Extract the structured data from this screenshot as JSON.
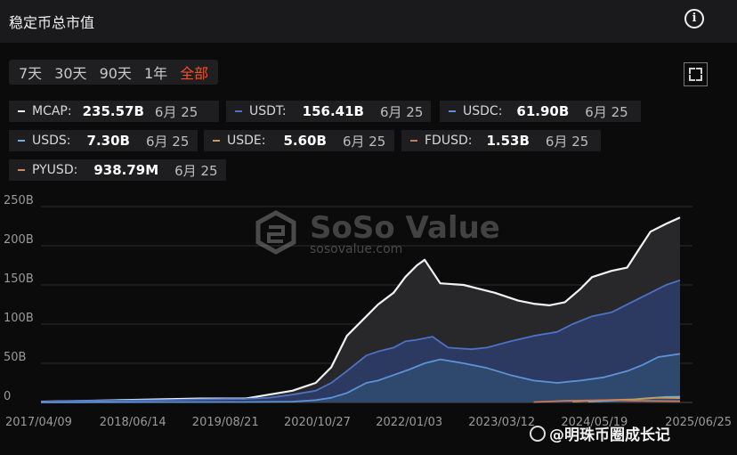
{
  "header": {
    "title": "稳定币总市值",
    "info_icon": "info-icon"
  },
  "tabs": [
    {
      "label": "7天",
      "active": false
    },
    {
      "label": "30天",
      "active": false
    },
    {
      "label": "90天",
      "active": false
    },
    {
      "label": "1年",
      "active": false
    },
    {
      "label": "全部",
      "active": true
    }
  ],
  "legend": [
    {
      "name": "MCAP:",
      "value": "235.57B",
      "date": "6月 25",
      "color": "#ffffff"
    },
    {
      "name": "USDT:",
      "value": "156.41B",
      "date": "6月 25",
      "color": "#4d72c4"
    },
    {
      "name": "USDC:",
      "value": "61.90B",
      "date": "6月 25",
      "color": "#5d93d6"
    },
    {
      "name": "USDS:",
      "value": "7.30B",
      "date": "6月 25",
      "color": "#6fb0e0"
    },
    {
      "name": "USDE:",
      "value": "5.60B",
      "date": "6月 25",
      "color": "#c59a5a"
    },
    {
      "name": "FDUSD:",
      "value": "1.53B",
      "date": "6月 25",
      "color": "#c8785a"
    },
    {
      "name": "PYUSD:",
      "value": "938.79M",
      "date": "6月 25",
      "color": "#d08a6a"
    }
  ],
  "watermark": {
    "brand": "SoSo Value",
    "url": "sosovalue.com"
  },
  "overlay_watermark": "@明珠币圈成长记",
  "chart_data": {
    "type": "area",
    "ylim": [
      0,
      250
    ],
    "yticks": [
      "0",
      "50B",
      "100B",
      "150B",
      "200B",
      "250B"
    ],
    "ytick_values": [
      0,
      50,
      100,
      150,
      200,
      250
    ],
    "xticks": [
      "2017/04/09",
      "2018/06/14",
      "2019/08/21",
      "2020/10/27",
      "2022/01/03",
      "2023/03/12",
      "2024/05/19",
      "2025/06/25"
    ],
    "xtick_values": [
      2017.27,
      2018.45,
      2019.64,
      2020.82,
      2022.0,
      2023.19,
      2024.38,
      2025.48
    ],
    "series": [
      {
        "name": "MCAP",
        "color": "#f2f2f2",
        "fill": "#2a2a2c",
        "x": [
          2017.27,
          2017.8,
          2018.3,
          2018.8,
          2019.3,
          2019.9,
          2020.2,
          2020.5,
          2020.8,
          2021.0,
          2021.2,
          2021.45,
          2021.6,
          2021.8,
          2021.95,
          2022.1,
          2022.2,
          2022.4,
          2022.7,
          2022.9,
          2023.1,
          2023.4,
          2023.6,
          2023.8,
          2024.0,
          2024.2,
          2024.35,
          2024.6,
          2024.8,
          2024.95,
          2025.1,
          2025.3,
          2025.48
        ],
        "y": [
          1,
          2,
          3,
          4,
          5,
          5,
          10,
          15,
          25,
          45,
          85,
          110,
          125,
          140,
          160,
          175,
          182,
          152,
          150,
          145,
          140,
          130,
          126,
          124,
          128,
          145,
          160,
          168,
          172,
          195,
          218,
          228,
          236
        ]
      },
      {
        "name": "USDT",
        "color": "#4d72c4",
        "fill": "#2c3a63",
        "x": [
          2017.27,
          2017.8,
          2018.3,
          2018.8,
          2019.3,
          2019.9,
          2020.2,
          2020.5,
          2020.8,
          2021.0,
          2021.2,
          2021.45,
          2021.6,
          2021.8,
          2021.95,
          2022.1,
          2022.3,
          2022.5,
          2022.8,
          2023.0,
          2023.3,
          2023.6,
          2023.9,
          2024.1,
          2024.35,
          2024.6,
          2024.9,
          2025.1,
          2025.3,
          2025.48
        ],
        "y": [
          1,
          2,
          2.5,
          3,
          4,
          4.5,
          6,
          10,
          15,
          25,
          40,
          60,
          65,
          70,
          78,
          80,
          84,
          70,
          68,
          70,
          78,
          85,
          90,
          100,
          110,
          115,
          130,
          140,
          150,
          156
        ]
      },
      {
        "name": "USDC",
        "color": "#5d93d6",
        "fill": "#2e4a6e",
        "x": [
          2017.27,
          2018.8,
          2019.9,
          2020.5,
          2020.8,
          2021.0,
          2021.2,
          2021.45,
          2021.6,
          2021.8,
          2022.0,
          2022.2,
          2022.4,
          2022.7,
          2023.0,
          2023.3,
          2023.6,
          2023.9,
          2024.2,
          2024.5,
          2024.8,
          2025.0,
          2025.2,
          2025.48
        ],
        "y": [
          0,
          0.5,
          0.6,
          1,
          3,
          6,
          12,
          25,
          28,
          35,
          42,
          50,
          55,
          50,
          44,
          35,
          28,
          25,
          28,
          32,
          40,
          48,
          58,
          62
        ]
      },
      {
        "name": "USDS",
        "color": "#6fb0e0",
        "fill": "none",
        "x": [
          2024.3,
          2024.8,
          2025.0,
          2025.3,
          2025.48
        ],
        "y": [
          1,
          3,
          5,
          7,
          7.3
        ]
      },
      {
        "name": "USDE",
        "color": "#c59a5a",
        "fill": "none",
        "x": [
          2024.1,
          2024.5,
          2024.9,
          2025.2,
          2025.48
        ],
        "y": [
          1,
          3,
          4,
          6,
          5.6
        ]
      },
      {
        "name": "FDUSD",
        "color": "#c8785a",
        "fill": "none",
        "x": [
          2023.6,
          2024.0,
          2024.5,
          2025.0,
          2025.48
        ],
        "y": [
          0.5,
          2,
          3,
          2,
          1.5
        ]
      }
    ]
  }
}
